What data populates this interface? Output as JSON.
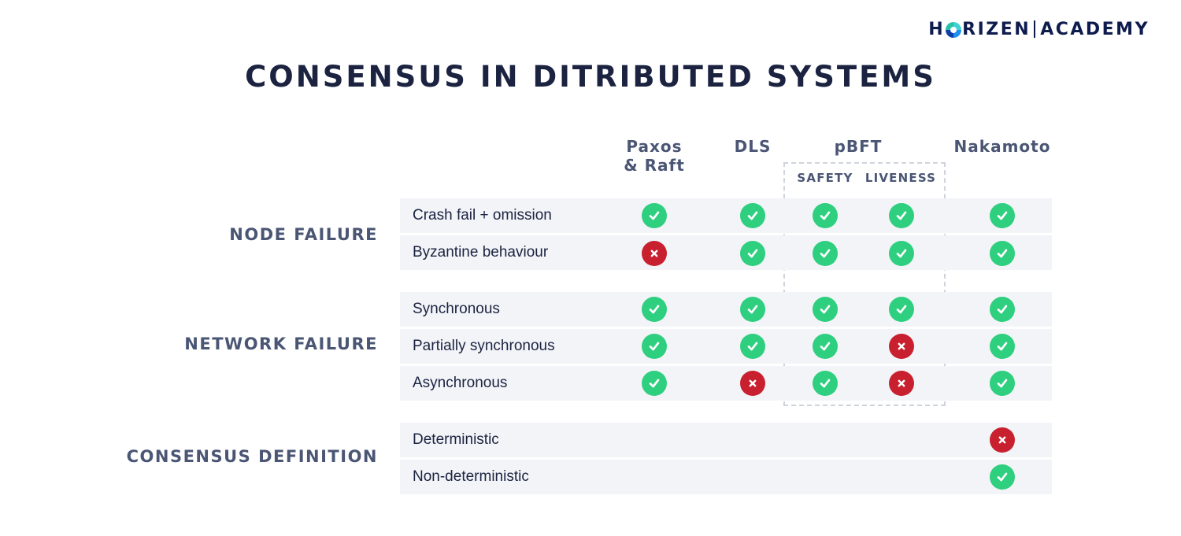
{
  "logo": {
    "left": "H",
    "right": "RIZEN",
    "academy": "ACADEMY"
  },
  "title": "CONSENSUS IN DITRIBUTED SYSTEMS",
  "columns": {
    "paxos": "Paxos\n& Raft",
    "paxos_line1": "Paxos",
    "paxos_line2": "& Raft",
    "dls": "DLS",
    "pbft": "pBFT",
    "pbft_safety": "SAFETY",
    "pbft_liveness": "LIVENESS",
    "nakamoto": "Nakamoto"
  },
  "groups": {
    "node_failure": "NODE FAILURE",
    "network_failure": "NETWORK FAILURE",
    "consensus_definition": "CONSENSUS DEFINITION"
  },
  "rows": [
    {
      "label": "Crash fail + omission",
      "paxos": "check",
      "dls": "check",
      "safety": "check",
      "liveness": "check",
      "nakamoto": "check"
    },
    {
      "label": "Byzantine behaviour",
      "paxos": "cross",
      "dls": "check",
      "safety": "check",
      "liveness": "check",
      "nakamoto": "check"
    },
    {
      "label": "Synchronous",
      "paxos": "check",
      "dls": "check",
      "safety": "check",
      "liveness": "check",
      "nakamoto": "check"
    },
    {
      "label": "Partially synchronous",
      "paxos": "check",
      "dls": "check",
      "safety": "check",
      "liveness": "cross",
      "nakamoto": "check"
    },
    {
      "label": "Asynchronous",
      "paxos": "check",
      "dls": "cross",
      "safety": "check",
      "liveness": "cross",
      "nakamoto": "check"
    },
    {
      "label": "Deterministic",
      "nakamoto": "cross"
    },
    {
      "label": "Non-deterministic",
      "nakamoto": "check"
    }
  ],
  "colors": {
    "check": "#2ecf7f",
    "cross": "#c8202f",
    "row_bg": "#f2f4f8",
    "title": "#1b2340",
    "header": "#4a5674"
  },
  "icons": {
    "check": "checkmark-icon",
    "cross": "cross-icon"
  }
}
